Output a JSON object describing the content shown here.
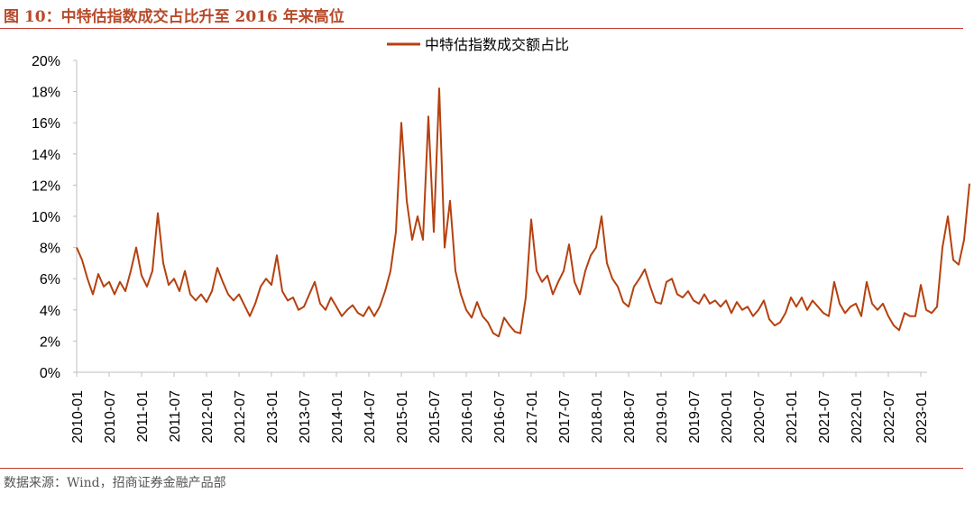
{
  "figure": {
    "title": "图 10：中特估指数成交占比升至 2016 年来高位",
    "source": "数据来源：Wind，招商证券金融产品部"
  },
  "colors": {
    "series": "#b5410f",
    "axis": "#bfbfbf",
    "accent": "#b84a2a"
  },
  "chart_data": {
    "type": "line",
    "title": "",
    "xlabel": "",
    "ylabel": "",
    "ylim": [
      0,
      20
    ],
    "yticks": [
      "0%",
      "2%",
      "4%",
      "6%",
      "8%",
      "10%",
      "12%",
      "14%",
      "16%",
      "18%",
      "20%"
    ],
    "xticks": [
      "2010-01",
      "2010-07",
      "2011-01",
      "2011-07",
      "2012-01",
      "2012-07",
      "2013-01",
      "2013-07",
      "2014-01",
      "2014-07",
      "2015-01",
      "2015-07",
      "2016-01",
      "2016-07",
      "2017-01",
      "2017-07",
      "2018-01",
      "2018-07",
      "2019-01",
      "2019-07",
      "2020-01",
      "2020-07",
      "2021-01",
      "2021-07",
      "2022-01",
      "2022-07",
      "2023-01"
    ],
    "x_range": [
      "2010-01",
      "2023-10"
    ],
    "grid": false,
    "legend": "top-center",
    "series": [
      {
        "name": "中特估指数成交额占比",
        "points": [
          [
            "2010-01",
            8.0
          ],
          [
            "2010-02",
            7.2
          ],
          [
            "2010-03",
            6.0
          ],
          [
            "2010-04",
            5.0
          ],
          [
            "2010-05",
            6.3
          ],
          [
            "2010-06",
            5.5
          ],
          [
            "2010-07",
            5.8
          ],
          [
            "2010-08",
            5.0
          ],
          [
            "2010-09",
            5.8
          ],
          [
            "2010-10",
            5.2
          ],
          [
            "2010-11",
            6.5
          ],
          [
            "2010-12",
            8.0
          ],
          [
            "2011-01",
            6.2
          ],
          [
            "2011-02",
            5.5
          ],
          [
            "2011-03",
            6.5
          ],
          [
            "2011-04",
            10.2
          ],
          [
            "2011-05",
            7.0
          ],
          [
            "2011-06",
            5.6
          ],
          [
            "2011-07",
            6.0
          ],
          [
            "2011-08",
            5.2
          ],
          [
            "2011-09",
            6.5
          ],
          [
            "2011-10",
            5.0
          ],
          [
            "2011-11",
            4.6
          ],
          [
            "2011-12",
            5.0
          ],
          [
            "2012-01",
            4.5
          ],
          [
            "2012-02",
            5.2
          ],
          [
            "2012-03",
            6.7
          ],
          [
            "2012-04",
            5.8
          ],
          [
            "2012-05",
            5.0
          ],
          [
            "2012-06",
            4.6
          ],
          [
            "2012-07",
            5.0
          ],
          [
            "2012-08",
            4.3
          ],
          [
            "2012-09",
            3.6
          ],
          [
            "2012-10",
            4.4
          ],
          [
            "2012-11",
            5.5
          ],
          [
            "2012-12",
            6.0
          ],
          [
            "2013-01",
            5.6
          ],
          [
            "2013-02",
            7.5
          ],
          [
            "2013-03",
            5.2
          ],
          [
            "2013-04",
            4.6
          ],
          [
            "2013-05",
            4.8
          ],
          [
            "2013-06",
            4.0
          ],
          [
            "2013-07",
            4.2
          ],
          [
            "2013-08",
            5.0
          ],
          [
            "2013-09",
            5.8
          ],
          [
            "2013-10",
            4.4
          ],
          [
            "2013-11",
            4.0
          ],
          [
            "2013-12",
            4.8
          ],
          [
            "2014-01",
            4.2
          ],
          [
            "2014-02",
            3.6
          ],
          [
            "2014-03",
            4.0
          ],
          [
            "2014-04",
            4.3
          ],
          [
            "2014-05",
            3.8
          ],
          [
            "2014-06",
            3.6
          ],
          [
            "2014-07",
            4.2
          ],
          [
            "2014-08",
            3.6
          ],
          [
            "2014-09",
            4.2
          ],
          [
            "2014-10",
            5.2
          ],
          [
            "2014-11",
            6.5
          ],
          [
            "2014-12",
            9.0
          ],
          [
            "2015-01",
            16.0
          ],
          [
            "2015-02",
            11.0
          ],
          [
            "2015-03",
            8.5
          ],
          [
            "2015-04",
            10.0
          ],
          [
            "2015-05",
            8.5
          ],
          [
            "2015-06",
            16.4
          ],
          [
            "2015-07",
            9.0
          ],
          [
            "2015-08",
            18.2
          ],
          [
            "2015-09",
            8.0
          ],
          [
            "2015-10",
            11.0
          ],
          [
            "2015-11",
            6.5
          ],
          [
            "2015-12",
            5.0
          ],
          [
            "2016-01",
            4.0
          ],
          [
            "2016-02",
            3.5
          ],
          [
            "2016-03",
            4.5
          ],
          [
            "2016-04",
            3.6
          ],
          [
            "2016-05",
            3.2
          ],
          [
            "2016-06",
            2.5
          ],
          [
            "2016-07",
            2.3
          ],
          [
            "2016-08",
            3.5
          ],
          [
            "2016-09",
            3.0
          ],
          [
            "2016-10",
            2.6
          ],
          [
            "2016-11",
            2.5
          ],
          [
            "2016-12",
            4.8
          ],
          [
            "2017-01",
            9.8
          ],
          [
            "2017-02",
            6.5
          ],
          [
            "2017-03",
            5.8
          ],
          [
            "2017-04",
            6.2
          ],
          [
            "2017-05",
            5.0
          ],
          [
            "2017-06",
            5.8
          ],
          [
            "2017-07",
            6.5
          ],
          [
            "2017-08",
            8.2
          ],
          [
            "2017-09",
            5.8
          ],
          [
            "2017-10",
            5.0
          ],
          [
            "2017-11",
            6.5
          ],
          [
            "2017-12",
            7.5
          ],
          [
            "2018-01",
            8.0
          ],
          [
            "2018-02",
            10.0
          ],
          [
            "2018-03",
            7.0
          ],
          [
            "2018-04",
            6.0
          ],
          [
            "2018-05",
            5.5
          ],
          [
            "2018-06",
            4.5
          ],
          [
            "2018-07",
            4.2
          ],
          [
            "2018-08",
            5.5
          ],
          [
            "2018-09",
            6.0
          ],
          [
            "2018-10",
            6.6
          ],
          [
            "2018-11",
            5.5
          ],
          [
            "2018-12",
            4.5
          ],
          [
            "2019-01",
            4.4
          ],
          [
            "2019-02",
            5.8
          ],
          [
            "2019-03",
            6.0
          ],
          [
            "2019-04",
            5.0
          ],
          [
            "2019-05",
            4.8
          ],
          [
            "2019-06",
            5.2
          ],
          [
            "2019-07",
            4.6
          ],
          [
            "2019-08",
            4.4
          ],
          [
            "2019-09",
            5.0
          ],
          [
            "2019-10",
            4.4
          ],
          [
            "2019-11",
            4.6
          ],
          [
            "2019-12",
            4.2
          ],
          [
            "2020-01",
            4.6
          ],
          [
            "2020-02",
            3.8
          ],
          [
            "2020-03",
            4.5
          ],
          [
            "2020-04",
            4.0
          ],
          [
            "2020-05",
            4.2
          ],
          [
            "2020-06",
            3.6
          ],
          [
            "2020-07",
            4.0
          ],
          [
            "2020-08",
            4.6
          ],
          [
            "2020-09",
            3.4
          ],
          [
            "2020-10",
            3.0
          ],
          [
            "2020-11",
            3.2
          ],
          [
            "2020-12",
            3.8
          ],
          [
            "2021-01",
            4.8
          ],
          [
            "2021-02",
            4.2
          ],
          [
            "2021-03",
            4.8
          ],
          [
            "2021-04",
            4.0
          ],
          [
            "2021-05",
            4.6
          ],
          [
            "2021-06",
            4.2
          ],
          [
            "2021-07",
            3.8
          ],
          [
            "2021-08",
            3.6
          ],
          [
            "2021-09",
            5.8
          ],
          [
            "2021-10",
            4.4
          ],
          [
            "2021-11",
            3.8
          ],
          [
            "2021-12",
            4.2
          ],
          [
            "2022-01",
            4.4
          ],
          [
            "2022-02",
            3.6
          ],
          [
            "2022-03",
            5.8
          ],
          [
            "2022-04",
            4.4
          ],
          [
            "2022-05",
            4.0
          ],
          [
            "2022-06",
            4.4
          ],
          [
            "2022-07",
            3.6
          ],
          [
            "2022-08",
            3.0
          ],
          [
            "2022-09",
            2.7
          ],
          [
            "2022-10",
            3.8
          ],
          [
            "2022-11",
            3.6
          ],
          [
            "2022-12",
            3.6
          ],
          [
            "2023-01",
            5.6
          ],
          [
            "2023-02",
            4.0
          ],
          [
            "2023-03",
            3.8
          ],
          [
            "2023-04",
            4.2
          ],
          [
            "2023-05",
            8.0
          ],
          [
            "2023-06",
            10.0
          ],
          [
            "2023-07",
            7.2
          ],
          [
            "2023-08",
            6.9
          ],
          [
            "2023-09",
            8.5
          ],
          [
            "2023-10",
            12.1
          ]
        ]
      }
    ]
  }
}
